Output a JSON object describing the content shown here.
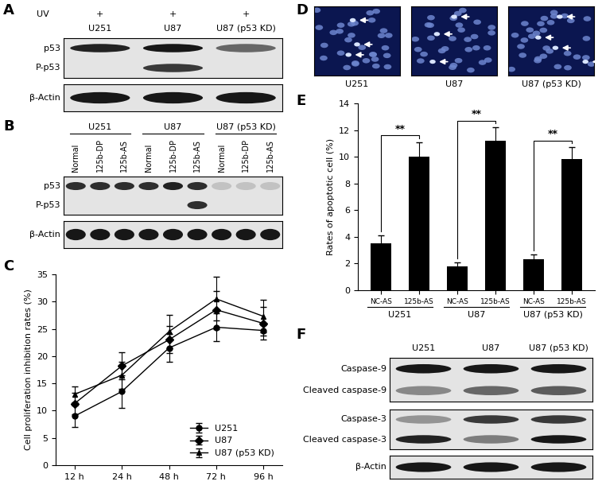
{
  "blots": {
    "A": {
      "panel": "A",
      "header_label": "UV",
      "header_marks": [
        "+",
        "+",
        "+"
      ],
      "lanes": [
        "U251",
        "U87",
        "U87 (p53 KD)"
      ],
      "membranes": [
        {
          "rows": [
            {
              "label": "p53",
              "bands": [
                0.85,
                0.9,
                0.55
              ]
            },
            {
              "label": "P-p53",
              "bands": [
                0,
                0.75,
                0
              ]
            }
          ]
        },
        {
          "rows": [
            {
              "label": "β-Actin",
              "bands": [
                0.9,
                0.9,
                0.9
              ]
            }
          ]
        }
      ]
    },
    "B": {
      "panel": "B",
      "groups": [
        {
          "name": "U251",
          "lanes": [
            "Normal",
            "125b-DP",
            "125b-AS"
          ]
        },
        {
          "name": "U87",
          "lanes": [
            "Normal",
            "125b-DP",
            "125b-AS"
          ]
        },
        {
          "name": "U87 (p53 KD)",
          "lanes": [
            "Normal",
            "125b-DP",
            "125b-AS"
          ]
        }
      ],
      "membranes": [
        {
          "rows": [
            {
              "label": "p53",
              "bands": [
                0.8,
                0.8,
                0.8,
                0.8,
                0.85,
                0.8,
                0.15,
                0.15,
                0.15
              ]
            },
            {
              "label": "P-p53",
              "bands": [
                0,
                0,
                0,
                0,
                0,
                0.8,
                0,
                0,
                0
              ]
            }
          ]
        },
        {
          "rows": [
            {
              "label": "β-Actin",
              "bands": [
                0.9,
                0.9,
                0.9,
                0.9,
                0.9,
                0.9,
                0.9,
                0.9,
                0.9
              ]
            }
          ]
        }
      ]
    },
    "F": {
      "panel": "F",
      "lanes": [
        "U251",
        "U87",
        "U87 (p53 KD)"
      ],
      "membranes": [
        {
          "rows": [
            {
              "label": "Caspase-9",
              "bands": [
                0.9,
                0.9,
                0.9
              ]
            },
            {
              "label": "Cleaved caspase-9",
              "bands": [
                0.4,
                0.55,
                0.6
              ]
            }
          ]
        },
        {
          "rows": [
            {
              "label": "Caspase-3",
              "bands": [
                0.35,
                0.75,
                0.75
              ]
            },
            {
              "label": "Cleaved caspase-3",
              "bands": [
                0.85,
                0.45,
                0.9
              ]
            }
          ]
        },
        {
          "rows": [
            {
              "label": "β-Actin",
              "bands": [
                0.9,
                0.9,
                0.9
              ]
            }
          ]
        }
      ]
    }
  },
  "micrographs": {
    "panel": "D",
    "captions": [
      "U251",
      "U87",
      "U87 (p53 KD)"
    ]
  },
  "chart_data": [
    {
      "panel": "C",
      "type": "line",
      "x": [
        "12 h",
        "24 h",
        "48 h",
        "72 h",
        "96 h"
      ],
      "ylabel": "Cell proliferation inhibition rates (%)",
      "ylim": [
        0,
        35
      ],
      "yticks": [
        0,
        5,
        10,
        15,
        20,
        25,
        30,
        35
      ],
      "legend": "lower right",
      "series": [
        {
          "name": "U251",
          "color": "black",
          "marker": "circle",
          "values": [
            9.0,
            13.5,
            21.5,
            25.3,
            24.7
          ],
          "errors": [
            2.0,
            3.0,
            2.5,
            2.5,
            1.0
          ]
        },
        {
          "name": "U87",
          "color": "black",
          "marker": "diamond",
          "values": [
            11.3,
            18.2,
            23.0,
            28.5,
            26.0
          ],
          "errors": [
            2.0,
            2.5,
            2.5,
            3.5,
            3.0
          ]
        },
        {
          "name": "U87 (p53 KD)",
          "color": "black",
          "marker": "triangle",
          "values": [
            13.0,
            16.5,
            24.5,
            30.5,
            27.3
          ],
          "errors": [
            1.5,
            2.5,
            3.0,
            4.0,
            3.0
          ]
        }
      ]
    },
    {
      "panel": "E",
      "type": "bar",
      "categories": [
        "NC-AS",
        "125b-AS",
        "NC-AS",
        "125b-AS",
        "NC-AS",
        "125b-AS"
      ],
      "values": [
        3.5,
        10.0,
        1.8,
        11.2,
        2.3,
        9.8
      ],
      "errors": [
        0.6,
        1.1,
        0.3,
        1.0,
        0.4,
        0.9
      ],
      "color": "black",
      "ylabel": "Rates of apoptotic cell (%)",
      "ylim": [
        0,
        14
      ],
      "yticks": [
        0,
        2,
        4,
        6,
        8,
        10,
        12,
        14
      ],
      "group_labels": [
        "U251",
        "U87",
        "U87 (p53 KD)"
      ],
      "significance": [
        {
          "text": "**",
          "pair": [
            0,
            1
          ]
        },
        {
          "text": "**",
          "pair": [
            2,
            3
          ]
        },
        {
          "text": "**",
          "pair": [
            4,
            5
          ]
        }
      ]
    }
  ]
}
